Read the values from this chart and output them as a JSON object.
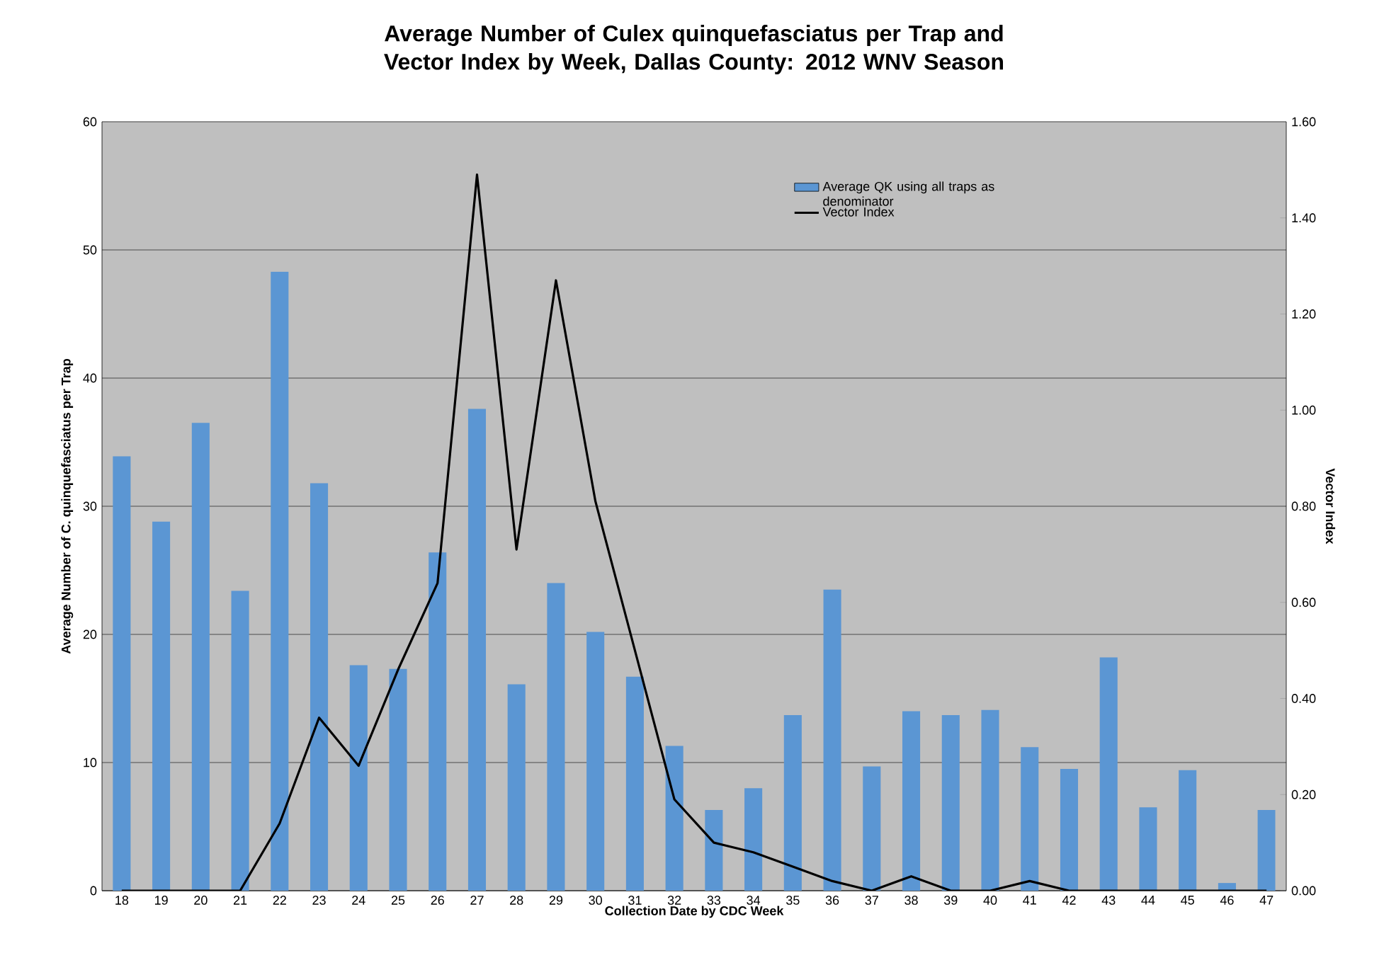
{
  "chart_data": {
    "type": "bar",
    "title": "Average Number of Culex quinquefasciatus per Trap and Vector Index by Week, Dallas County: 2012 WNV Season",
    "xlabel": "Collection Date by CDC Week",
    "ylabel": "Average Number of C. quinquefasciatus per Trap",
    "y2label": "Vector Index",
    "categories": [
      "18",
      "19",
      "20",
      "21",
      "22",
      "23",
      "24",
      "25",
      "26",
      "27",
      "28",
      "29",
      "30",
      "31",
      "32",
      "33",
      "34",
      "35",
      "36",
      "37",
      "38",
      "39",
      "40",
      "41",
      "42",
      "43",
      "44",
      "45",
      "46",
      "47"
    ],
    "series": [
      {
        "name": "Average QK using all traps as denominator",
        "color": "#5b96d3",
        "values": [
          33.9,
          28.8,
          36.5,
          23.4,
          48.3,
          31.8,
          17.6,
          17.3,
          26.4,
          37.6,
          16.1,
          24.0,
          20.2,
          16.7,
          11.3,
          6.3,
          8.0,
          13.7,
          23.5,
          9.7,
          14.0,
          13.7,
          14.1,
          11.2,
          9.5,
          18.2,
          6.5,
          9.4,
          0.6,
          6.3
        ]
      },
      {
        "name": "Vector Index",
        "type": "line",
        "axis": "y2",
        "color": "#000000",
        "values": [
          0,
          0,
          0,
          0,
          0.14,
          0.36,
          0.26,
          0.46,
          0.64,
          1.49,
          0.71,
          1.27,
          0.81,
          0.5,
          0.19,
          0.1,
          0.08,
          0.05,
          0.02,
          0,
          0.03,
          0,
          0,
          0.02,
          0,
          0,
          0,
          0,
          0,
          0
        ]
      }
    ],
    "ylim": [
      0,
      60
    ],
    "yticks": [
      0,
      10,
      20,
      30,
      40,
      50,
      60
    ],
    "y2lim": [
      0,
      1.6
    ],
    "y2ticks": [
      {
        "value": 0,
        "label": "0.00"
      },
      {
        "value": 0.2,
        "label": "0.20"
      },
      {
        "value": 0.4,
        "label": "0.40"
      },
      {
        "value": 0.6,
        "label": "0.60"
      },
      {
        "value": 0.8,
        "label": "0.80"
      },
      {
        "value": 1.0,
        "label": "1.00"
      },
      {
        "value": 1.2,
        "label": "1.20"
      },
      {
        "value": 1.4,
        "label": "1.40"
      },
      {
        "value": 1.6,
        "label": "1.60"
      }
    ],
    "grid": "y",
    "legend": "top right",
    "marker": "none",
    "line_style": "solid"
  }
}
